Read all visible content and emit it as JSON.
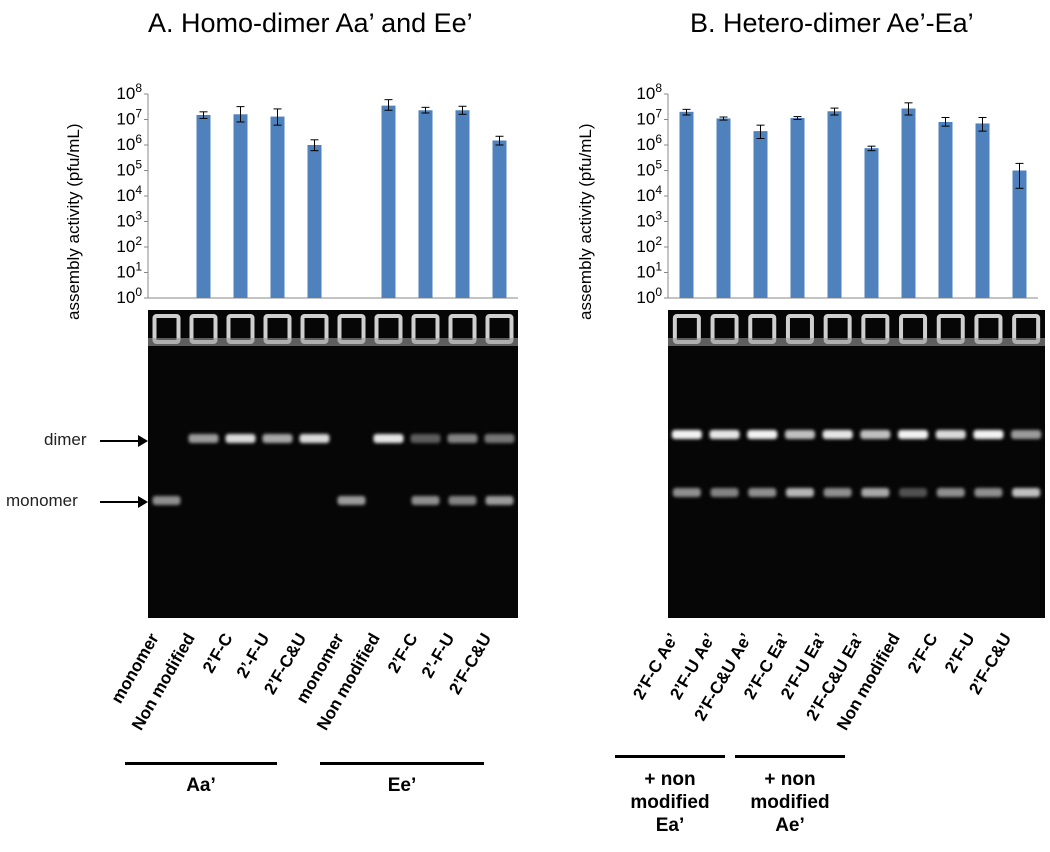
{
  "panels": {
    "a": {
      "title": "A. Homo-dimer Aa’ and Ee’",
      "ylabel": "assembly activity (pfu/mL)",
      "band_labels": {
        "dimer": "dimer",
        "monomer": "monomer"
      },
      "lane_labels": [
        "monomer",
        "Non modified",
        "2’F-C",
        "2’-F-U",
        "2’F-C&U",
        "monomer",
        "Non modified",
        "2’F-C",
        "2’-F-U",
        "2’F-C&U"
      ],
      "groups": [
        {
          "label": "Aa’"
        },
        {
          "label": "Ee’"
        }
      ]
    },
    "b": {
      "title": "B. Hetero-dimer Ae’-Ea’",
      "ylabel": "assembly activity (pfu/mL)",
      "lane_labels": [
        "2’F-C Ae’",
        "2’F-U Ae’",
        "2’F-C&U Ae’",
        "2’F-C Ea’",
        "2’F-U Ea’",
        "2’F-C&U Ea’",
        "Non modified",
        "2’F-C",
        "2’F-U",
        "2’F-C&U"
      ],
      "groups": [
        {
          "label": "+ non modified Ea’"
        },
        {
          "label": "+ non modified Ae’"
        }
      ]
    }
  },
  "colors": {
    "bar": "#4F81BD",
    "gel_background": "#060606",
    "band": "#ffffff"
  },
  "chart_data": [
    {
      "type": "bar",
      "title": "A. Homo-dimer Aa’ and Ee’",
      "ylabel": "assembly activity (pfu/mL)",
      "yscale": "log",
      "ylim": [
        1,
        100000000
      ],
      "yticks": [
        "10^0",
        "10^1",
        "10^2",
        "10^3",
        "10^4",
        "10^5",
        "10^6",
        "10^7",
        "10^8"
      ],
      "categories": [
        "monomer",
        "Non modified",
        "2’F-C",
        "2’-F-U",
        "2’F-C&U",
        "monomer",
        "Non modified",
        "2’F-C",
        "2’-F-U",
        "2’F-C&U"
      ],
      "values": [
        null,
        15000000,
        16000000,
        13000000,
        1000000,
        null,
        35000000,
        23000000,
        23000000,
        1500000
      ],
      "error_low": [
        null,
        11000000,
        8000000,
        6000000,
        600000,
        null,
        23000000,
        18000000,
        16000000,
        1000000
      ],
      "error_high": [
        null,
        20000000,
        32000000,
        26000000,
        1600000,
        null,
        60000000,
        30000000,
        33000000,
        2200000
      ],
      "grid": false
    },
    {
      "type": "bar",
      "title": "B. Hetero-dimer Ae’-Ea’",
      "ylabel": "assembly activity (pfu/mL)",
      "yscale": "log",
      "ylim": [
        1,
        100000000
      ],
      "yticks": [
        "10^0",
        "10^1",
        "10^2",
        "10^3",
        "10^4",
        "10^5",
        "10^6",
        "10^7",
        "10^8"
      ],
      "categories": [
        "2’F-C Ae’",
        "2’F-U Ae’",
        "2’F-C&U Ae’",
        "2’F-C Ea’",
        "2’F-U Ea’",
        "2’F-C&U Ea’",
        "Non modified",
        "2’F-C",
        "2’F-U",
        "2’F-C&U"
      ],
      "values": [
        20000000,
        11000000,
        3500000,
        11500000,
        21000000,
        750000,
        27000000,
        8000000,
        7000000,
        100000
      ],
      "error_low": [
        15000000,
        9500000,
        1800000,
        10000000,
        15000000,
        600000,
        15000000,
        5500000,
        3500000,
        20000
      ],
      "error_high": [
        25000000,
        12500000,
        6000000,
        13000000,
        28000000,
        900000,
        45000000,
        12000000,
        12000000,
        190000
      ],
      "grid": false
    }
  ]
}
